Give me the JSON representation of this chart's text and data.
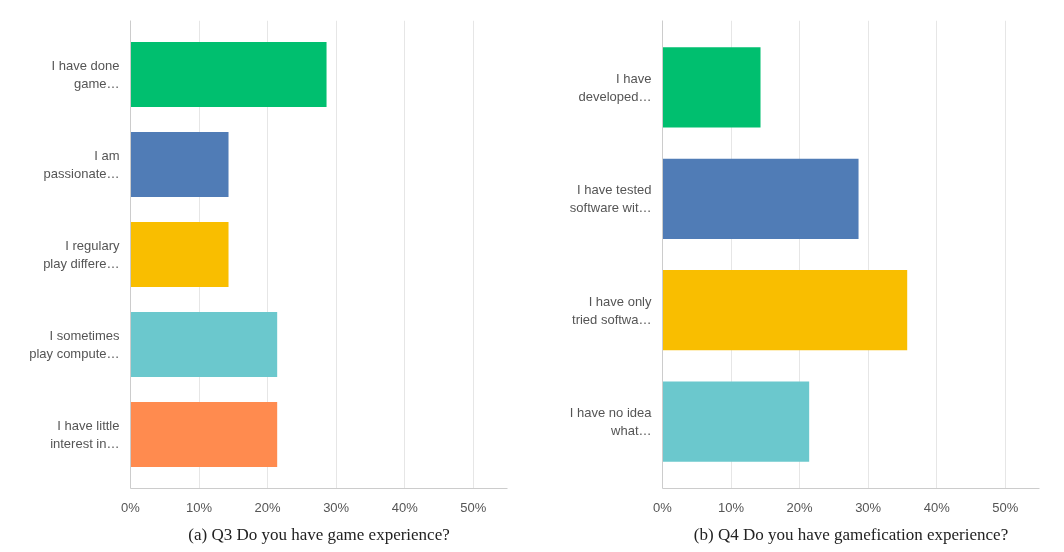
{
  "chart_data": [
    {
      "type": "bar",
      "orientation": "horizontal",
      "categories": [
        "I have done\ngame…",
        "I am\npassionate…",
        "I regulary\nplay differe…",
        "I sometimes\nplay compute…",
        "I have little\ninterest in…"
      ],
      "values": [
        28.6,
        14.3,
        14.3,
        21.4,
        21.4
      ],
      "colors": [
        "#00bf6f",
        "#507cb6",
        "#f9be00",
        "#6bc8cd",
        "#ff8b4f"
      ],
      "xlim": [
        0,
        55
      ],
      "xticks": [
        {
          "value": 0,
          "label": "0%"
        },
        {
          "value": 10,
          "label": "10%"
        },
        {
          "value": 20,
          "label": "20%"
        },
        {
          "value": 30,
          "label": "30%"
        },
        {
          "value": 40,
          "label": "40%"
        },
        {
          "value": 50,
          "label": "50%"
        }
      ],
      "grid": "x",
      "annotations": [
        "(a) Q3 Do you have game experience?"
      ]
    },
    {
      "type": "bar",
      "orientation": "horizontal",
      "categories": [
        "I have\ndeveloped…",
        "I have tested\nsoftware wit…",
        "I have only\ntried softwa…",
        "I have no idea\nwhat…"
      ],
      "values": [
        14.3,
        28.6,
        35.7,
        21.4
      ],
      "colors": [
        "#00bf6f",
        "#507cb6",
        "#f9be00",
        "#6bc8cd"
      ],
      "xlim": [
        0,
        55
      ],
      "xticks": [
        {
          "value": 0,
          "label": "0%"
        },
        {
          "value": 10,
          "label": "10%"
        },
        {
          "value": 20,
          "label": "20%"
        },
        {
          "value": 30,
          "label": "30%"
        },
        {
          "value": 40,
          "label": "40%"
        },
        {
          "value": 50,
          "label": "50%"
        }
      ],
      "grid": "x",
      "annotations": [
        "(b) Q4 Do you have gamefication experience?"
      ]
    }
  ]
}
